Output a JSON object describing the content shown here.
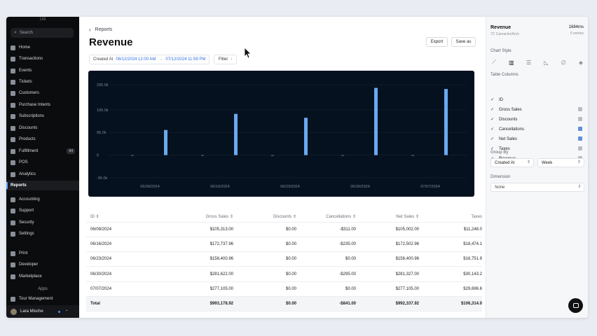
{
  "sidebar": {
    "top": "Uiti",
    "search_placeholder": "Search",
    "items": [
      {
        "label": "Home",
        "icon": "home-icon"
      },
      {
        "label": "Transactions",
        "icon": "transactions-icon"
      },
      {
        "label": "Events",
        "icon": "events-icon"
      },
      {
        "label": "Tickets",
        "icon": "tickets-icon"
      },
      {
        "label": "Customers",
        "icon": "customers-icon"
      },
      {
        "label": "Purchase Intents",
        "icon": "purchase-intents-icon"
      },
      {
        "label": "Subscriptions",
        "icon": "subscriptions-icon"
      },
      {
        "label": "Discounts",
        "icon": "discounts-icon"
      },
      {
        "label": "Products",
        "icon": "products-icon"
      },
      {
        "label": "Fulfillment",
        "icon": "fulfillment-icon",
        "badge": "64"
      },
      {
        "label": "POS",
        "icon": "pos-icon"
      },
      {
        "label": "Analytics",
        "icon": "analytics-icon"
      },
      {
        "label": "Reports",
        "icon": "",
        "active": true
      },
      {
        "label": "Accounting",
        "icon": "accounting-icon"
      },
      {
        "label": "Support",
        "icon": "support-icon"
      },
      {
        "label": "Security",
        "icon": "security-icon"
      },
      {
        "label": "Settings",
        "icon": "settings-icon"
      },
      {
        "label": "Print",
        "icon": "print-icon"
      },
      {
        "label": "Developer",
        "icon": "developer-icon"
      },
      {
        "label": "Marketplace",
        "icon": "marketplace-icon"
      },
      {
        "label": "Tour Management",
        "icon": "tour-management-icon"
      }
    ],
    "apps_label": "Apps",
    "user_name": "Lara Mische"
  },
  "header": {
    "breadcrumb": "Reports",
    "title": "Revenue",
    "export_label": "Export",
    "save_label": "Save as"
  },
  "filters": {
    "created_label": "Created At",
    "start": "06/12/2024 12:00 AM",
    "arrow": "→",
    "end": "07/12/2024 11:59 PM",
    "filter_label": "Filter"
  },
  "chart_data": {
    "type": "bar",
    "categories": [
      "06/09/2024",
      "06/16/2024",
      "06/23/2024",
      "06/30/2024",
      "07/07/2024"
    ],
    "y_ticks": [
      "295.0k",
      "190.0k",
      "95.0k",
      "0",
      "-95.0k"
    ],
    "ylim": [
      -95000,
      295000
    ],
    "series": [
      {
        "values": [
          105313,
          172738,
          156401,
          281622,
          277105
        ],
        "color": "#6aa9f0"
      },
      {
        "values": [
          -311,
          -235,
          0,
          -295,
          0
        ],
        "color": "#6aa9f0"
      }
    ]
  },
  "table": {
    "columns": [
      "ID ⇕",
      "Gross Sales ⇕",
      "Discounts ⇕",
      "Cancellations ⇕",
      "Net Sales ⇕",
      "Taxes"
    ],
    "rows": [
      [
        "06/09/2024",
        "$105,313.00",
        "$0.00",
        "-$311.00",
        "$105,002.00",
        "$11,248.0"
      ],
      [
        "06/16/2024",
        "$172,737.96",
        "$0.00",
        "-$235.00",
        "$172,502.96",
        "$18,474.1"
      ],
      [
        "06/23/2024",
        "$156,400.96",
        "$0.00",
        "$0.00",
        "$156,400.96",
        "$16,751.9"
      ],
      [
        "06/30/2024",
        "$281,622.00",
        "$0.00",
        "-$295.00",
        "$281,327.00",
        "$30,143.2"
      ],
      [
        "07/07/2024",
        "$277,105.00",
        "$0.00",
        "$0.00",
        "$277,105.00",
        "$29,696.6"
      ]
    ],
    "total": [
      "Total",
      "$993,178.92",
      "$0.00",
      "-$841.00",
      "$992,337.92",
      "$106,314.0"
    ]
  },
  "panel": {
    "title": "Revenue",
    "subtitle": "7C Camacho/Arch",
    "ms": "1684ms",
    "rows": "5 entries",
    "chart_style_label": "Chart Style",
    "table_columns_label": "Table Columns",
    "columns": [
      {
        "label": "ID",
        "lock": ""
      },
      {
        "label": "Gross Sales",
        "lock": "gray"
      },
      {
        "label": "Discounts",
        "lock": "gray"
      },
      {
        "label": "Cancellations",
        "lock": "blue"
      },
      {
        "label": "Net Sales",
        "lock": "blue"
      },
      {
        "label": "Taxes",
        "lock": "gray"
      },
      {
        "label": "Revenue",
        "lock": "gray"
      }
    ],
    "group_by_label": "Group By",
    "group_by_value": "Created At",
    "group_period": "Week",
    "dimension_label": "Dimension",
    "dimension_value": "None"
  }
}
